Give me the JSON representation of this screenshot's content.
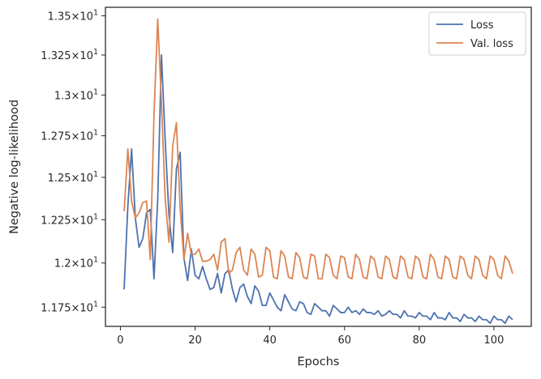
{
  "chart_data": {
    "type": "line",
    "xlabel": "Epochs",
    "ylabel": "Negative log-likelihood",
    "xlim": [
      -4,
      110
    ],
    "ylim": [
      11.643,
      13.555
    ],
    "y_scale": "log",
    "grid": false,
    "legend_position": "top-right",
    "x_ticks": [
      0,
      20,
      40,
      60,
      80,
      100
    ],
    "x_tick_labels": [
      "0",
      "20",
      "40",
      "60",
      "80",
      "100"
    ],
    "y_ticks": [
      11.75,
      12.0,
      12.25,
      12.5,
      12.75,
      13.0,
      13.25,
      13.5
    ],
    "y_tick_labels": [
      {
        "mantissa": "1.175",
        "exp": "1"
      },
      {
        "mantissa": "1.2",
        "exp": "1"
      },
      {
        "mantissa": "1.225",
        "exp": "1"
      },
      {
        "mantissa": "1.25",
        "exp": "1"
      },
      {
        "mantissa": "1.275",
        "exp": "1"
      },
      {
        "mantissa": "1.3",
        "exp": "1"
      },
      {
        "mantissa": "1.325",
        "exp": "1"
      },
      {
        "mantissa": "1.35",
        "exp": "1"
      }
    ],
    "tick_label_base": "×10",
    "series": [
      {
        "name": "Loss",
        "color": "#4c72b0",
        "x_start": 1,
        "values": [
          11.85,
          12.33,
          12.67,
          12.26,
          12.09,
          12.14,
          12.29,
          12.31,
          11.91,
          12.37,
          13.25,
          12.72,
          12.28,
          12.06,
          12.55,
          12.65,
          12.03,
          11.9,
          12.08,
          11.93,
          11.91,
          11.98,
          11.91,
          11.85,
          11.86,
          11.94,
          11.83,
          11.94,
          11.96,
          11.85,
          11.78,
          11.86,
          11.88,
          11.81,
          11.77,
          11.87,
          11.84,
          11.76,
          11.76,
          11.83,
          11.79,
          11.75,
          11.73,
          11.82,
          11.78,
          11.74,
          11.73,
          11.78,
          11.77,
          11.72,
          11.71,
          11.77,
          11.75,
          11.73,
          11.73,
          11.7,
          11.76,
          11.74,
          11.72,
          11.72,
          11.75,
          11.72,
          11.73,
          11.71,
          11.74,
          11.72,
          11.72,
          11.71,
          11.73,
          11.7,
          11.71,
          11.73,
          11.71,
          11.71,
          11.69,
          11.73,
          11.7,
          11.7,
          11.69,
          11.72,
          11.7,
          11.7,
          11.68,
          11.72,
          11.69,
          11.69,
          11.68,
          11.72,
          11.69,
          11.69,
          11.67,
          11.71,
          11.69,
          11.69,
          11.67,
          11.7,
          11.68,
          11.68,
          11.66,
          11.7,
          11.68,
          11.68,
          11.66,
          11.7,
          11.68
        ]
      },
      {
        "name": "Val. loss",
        "color": "#dd8452",
        "x_start": 1,
        "values": [
          12.3,
          12.67,
          12.36,
          12.26,
          12.29,
          12.35,
          12.36,
          12.02,
          12.88,
          13.48,
          12.95,
          12.37,
          12.12,
          12.69,
          12.83,
          12.32,
          12.02,
          12.17,
          12.05,
          12.05,
          12.08,
          12.01,
          12.01,
          12.02,
          12.05,
          11.96,
          12.12,
          12.14,
          11.94,
          11.96,
          12.06,
          12.09,
          11.96,
          11.93,
          12.08,
          12.05,
          11.92,
          11.93,
          12.09,
          12.07,
          11.92,
          11.91,
          12.07,
          12.04,
          11.92,
          11.91,
          12.06,
          12.03,
          11.92,
          11.91,
          12.05,
          12.04,
          11.91,
          11.91,
          12.05,
          12.03,
          11.93,
          11.91,
          12.04,
          12.03,
          11.92,
          11.91,
          12.05,
          12.02,
          11.92,
          11.91,
          12.04,
          12.02,
          11.92,
          11.91,
          12.04,
          12.02,
          11.92,
          11.91,
          12.04,
          12.02,
          11.92,
          11.91,
          12.04,
          12.02,
          11.92,
          11.91,
          12.05,
          12.02,
          11.92,
          11.91,
          12.04,
          12.02,
          11.92,
          11.91,
          12.04,
          12.02,
          11.93,
          11.91,
          12.04,
          12.02,
          11.93,
          11.91,
          12.04,
          12.02,
          11.93,
          11.91,
          12.04,
          12.01,
          11.94
        ]
      }
    ]
  }
}
